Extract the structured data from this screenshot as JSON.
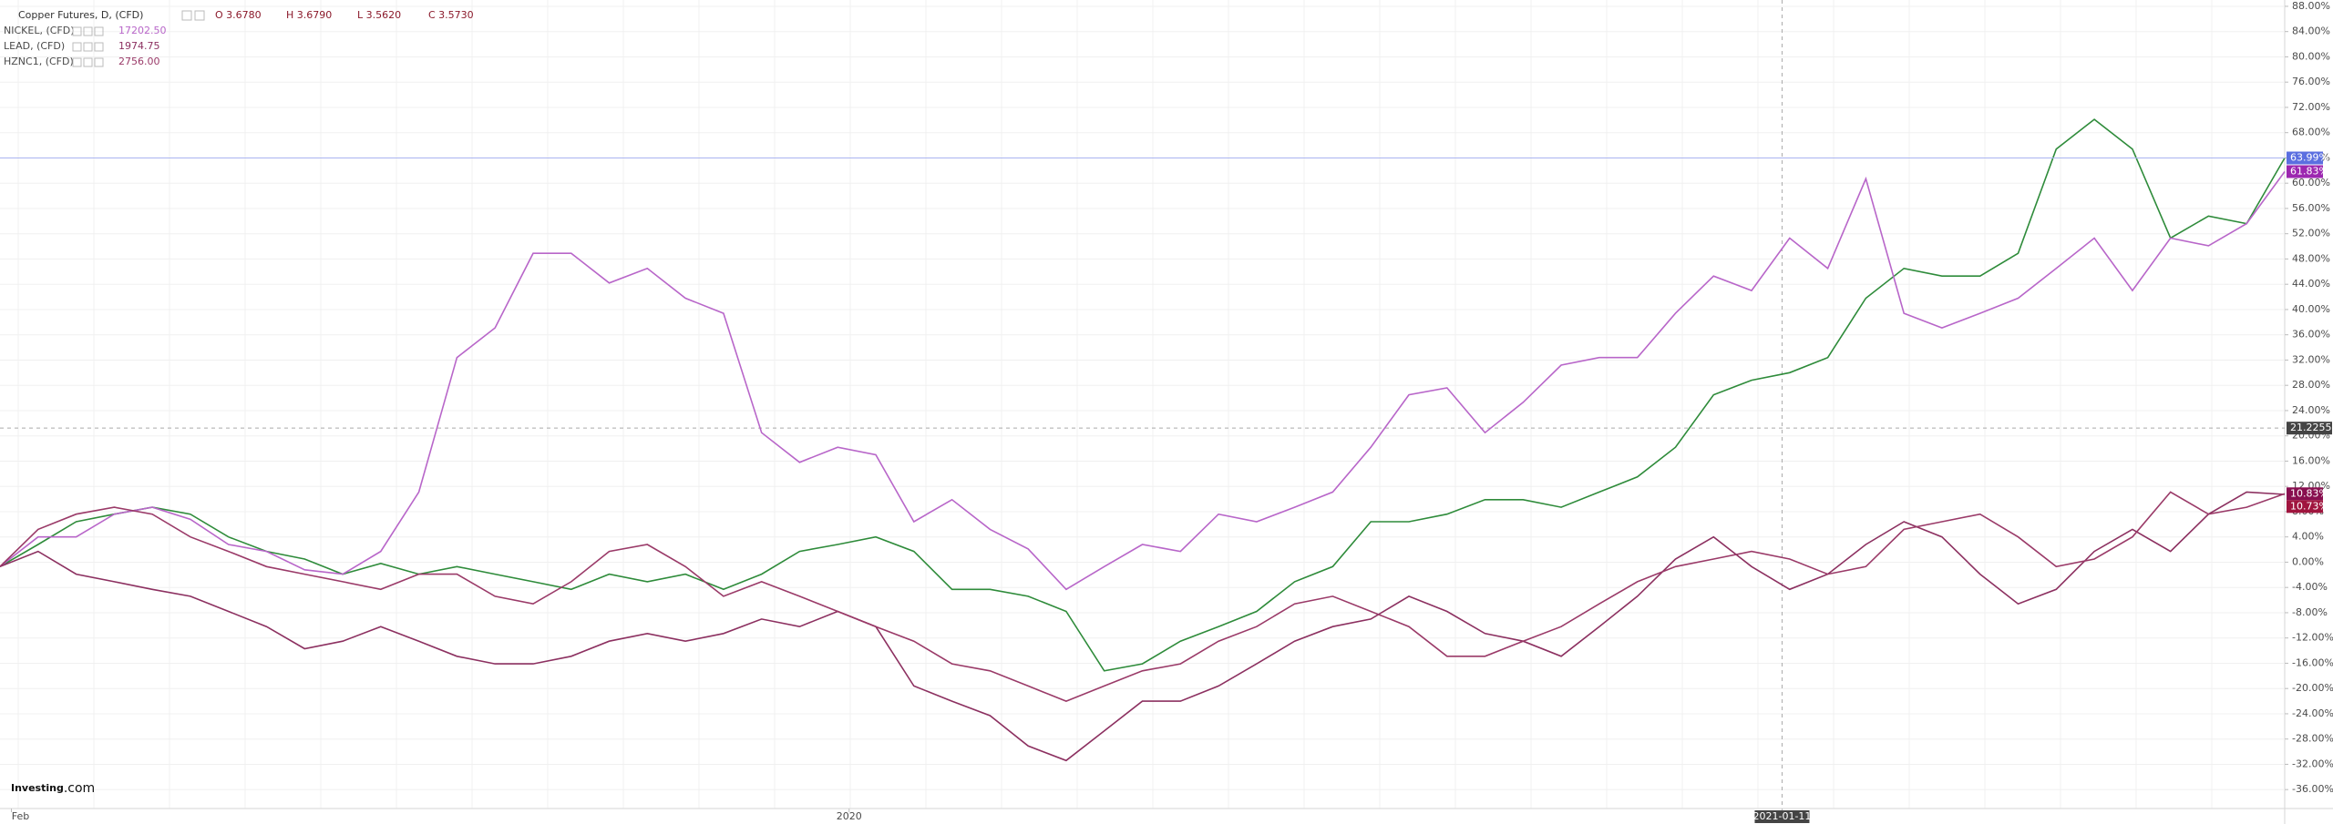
{
  "chart_data": {
    "type": "line",
    "legend_header": {
      "ohlc": [
        "O 3.6780",
        "H 3.6790",
        "L 3.5620",
        "C 3.5730"
      ]
    },
    "watermark": [
      "Investing",
      ".com"
    ],
    "xlim": [
      0,
      60
    ],
    "xticks": [
      {
        "value": 0.3,
        "label": "Feb"
      },
      {
        "value": 22.3,
        "label": "2020"
      },
      {
        "value": 46.8,
        "label": "2021-01-11"
      }
    ],
    "ylim": [
      -39,
      89
    ],
    "yticks": [
      {
        "value": 88,
        "label": "88.00%"
      },
      {
        "value": 84,
        "label": "84.00%"
      },
      {
        "value": 80,
        "label": "80.00%"
      },
      {
        "value": 76,
        "label": "76.00%"
      },
      {
        "value": 72,
        "label": "72.00%"
      },
      {
        "value": 68,
        "label": "68.00%"
      },
      {
        "value": 64,
        "label": "64.00%"
      },
      {
        "value": 60,
        "label": "60.00%"
      },
      {
        "value": 56,
        "label": "56.00%"
      },
      {
        "value": 52,
        "label": "52.00%"
      },
      {
        "value": 48,
        "label": "48.00%"
      },
      {
        "value": 44,
        "label": "44.00%"
      },
      {
        "value": 40,
        "label": "40.00%"
      },
      {
        "value": 36,
        "label": "36.00%"
      },
      {
        "value": 32,
        "label": "32.00%"
      },
      {
        "value": 28,
        "label": "28.00%"
      },
      {
        "value": 24,
        "label": "24.00%"
      },
      {
        "value": 20,
        "label": "20.00%"
      },
      {
        "value": 16,
        "label": "16.00%"
      },
      {
        "value": 12,
        "label": "12.00%"
      },
      {
        "value": 8,
        "label": "8.00%"
      },
      {
        "value": 4,
        "label": "4.00%"
      },
      {
        "value": 0,
        "label": "0.00%"
      },
      {
        "value": -4,
        "label": "-4.00%"
      },
      {
        "value": -8,
        "label": "-8.00%"
      },
      {
        "value": -12,
        "label": "-12.00%"
      },
      {
        "value": -16,
        "label": "-16.00%"
      },
      {
        "value": -20,
        "label": "-20.00%"
      },
      {
        "value": -24,
        "label": "-24.00%"
      },
      {
        "value": -28,
        "label": "-28.00%"
      },
      {
        "value": -32,
        "label": "-32.00%"
      },
      {
        "value": -36,
        "label": "-36.00%"
      }
    ],
    "grid": true,
    "crosshair": {
      "y": 21.2255
    },
    "series": [
      {
        "name": "Copper Futures, D, (CFD)",
        "color": "#2e8b3a",
        "tag_color": "#5b6fe0",
        "last_label": "63.99%",
        "values": [
          -0.7,
          2.8,
          6.4,
          7.6,
          8.7,
          7.6,
          4.0,
          1.7,
          0.5,
          -1.9,
          -0.2,
          -1.9,
          -0.7,
          -1.9,
          -3.1,
          -4.3,
          -1.9,
          -3.1,
          -1.9,
          -4.3,
          -1.9,
          1.7,
          2.8,
          4.0,
          1.7,
          -4.3,
          -4.3,
          -5.4,
          -7.8,
          -17.2,
          -16.1,
          -12.5,
          -10.2,
          -7.8,
          -3.1,
          -0.7,
          6.4,
          6.4,
          7.6,
          9.9,
          9.9,
          8.7,
          11.1,
          13.5,
          18.2,
          26.5,
          28.8,
          30.0,
          32.4,
          41.8,
          46.5,
          45.3,
          45.3,
          48.9,
          65.4,
          70.1,
          65.4,
          51.3,
          54.8,
          53.6,
          63.99
        ]
      },
      {
        "name": "NICKEL, (CFD)",
        "legend_value": "17202.50",
        "color": "#b866c9",
        "tag_color": "#9c27b0",
        "last_label": "61.83%",
        "values": [
          -0.7,
          4.0,
          4.0,
          7.6,
          8.7,
          6.8,
          2.8,
          1.7,
          -1.2,
          -1.9,
          1.7,
          11.1,
          32.4,
          37.1,
          48.9,
          48.9,
          44.2,
          46.5,
          41.8,
          39.4,
          20.5,
          15.8,
          18.2,
          17.0,
          6.4,
          9.9,
          5.2,
          2.1,
          -4.3,
          -0.7,
          2.8,
          1.7,
          7.6,
          6.4,
          8.7,
          11.1,
          18.2,
          26.5,
          27.6,
          20.5,
          25.3,
          31.2,
          32.4,
          32.4,
          39.4,
          45.3,
          43.0,
          51.3,
          46.5,
          60.7,
          39.4,
          37.1,
          39.4,
          41.8,
          46.5,
          51.3,
          43.0,
          51.3,
          50.1,
          53.6,
          61.83
        ]
      },
      {
        "name": "LEAD, (CFD)",
        "legend_value": "1974.75",
        "color": "#8c3060",
        "tag_color": "#a0153e",
        "last_label": "10.73%",
        "values": [
          -0.7,
          1.7,
          -1.9,
          -3.1,
          -4.3,
          -5.4,
          -7.8,
          -10.2,
          -13.7,
          -12.5,
          -10.2,
          -12.5,
          -14.9,
          -16.1,
          -16.1,
          -14.9,
          -12.5,
          -11.3,
          -12.5,
          -11.3,
          -9.0,
          -10.2,
          -7.8,
          -10.2,
          -19.6,
          -22.0,
          -24.3,
          -29.1,
          -31.4,
          -26.7,
          -22.0,
          -22.0,
          -19.6,
          -16.1,
          -12.5,
          -10.2,
          -9.0,
          -5.4,
          -7.8,
          -11.3,
          -12.5,
          -14.9,
          -10.2,
          -5.4,
          0.5,
          4.0,
          -0.7,
          -4.3,
          -1.9,
          2.8,
          6.4,
          4.0,
          -1.9,
          -6.6,
          -4.3,
          1.7,
          5.2,
          1.7,
          7.6,
          11.1,
          10.73
        ]
      },
      {
        "name": "HZNC1, (CFD)",
        "legend_value": "2756.00",
        "color": "#9a3a68",
        "tag_color": "#880e4f",
        "last_label": "10.83%",
        "values": [
          -0.7,
          5.2,
          7.6,
          8.7,
          7.6,
          4.0,
          1.7,
          -0.7,
          -1.9,
          -3.1,
          -4.3,
          -1.9,
          -1.9,
          -5.4,
          -6.6,
          -3.1,
          1.7,
          2.8,
          -0.7,
          -5.4,
          -3.1,
          -5.4,
          -7.8,
          -10.2,
          -12.5,
          -16.1,
          -17.2,
          -19.6,
          -22.0,
          -19.6,
          -17.2,
          -16.1,
          -12.5,
          -10.2,
          -6.6,
          -5.4,
          -7.8,
          -10.2,
          -14.9,
          -14.9,
          -12.5,
          -10.2,
          -6.6,
          -3.1,
          -0.7,
          0.5,
          1.7,
          0.5,
          -1.9,
          -0.7,
          5.2,
          6.4,
          7.6,
          4.0,
          -0.7,
          0.5,
          4.0,
          11.1,
          7.6,
          8.7,
          10.83
        ]
      }
    ]
  }
}
